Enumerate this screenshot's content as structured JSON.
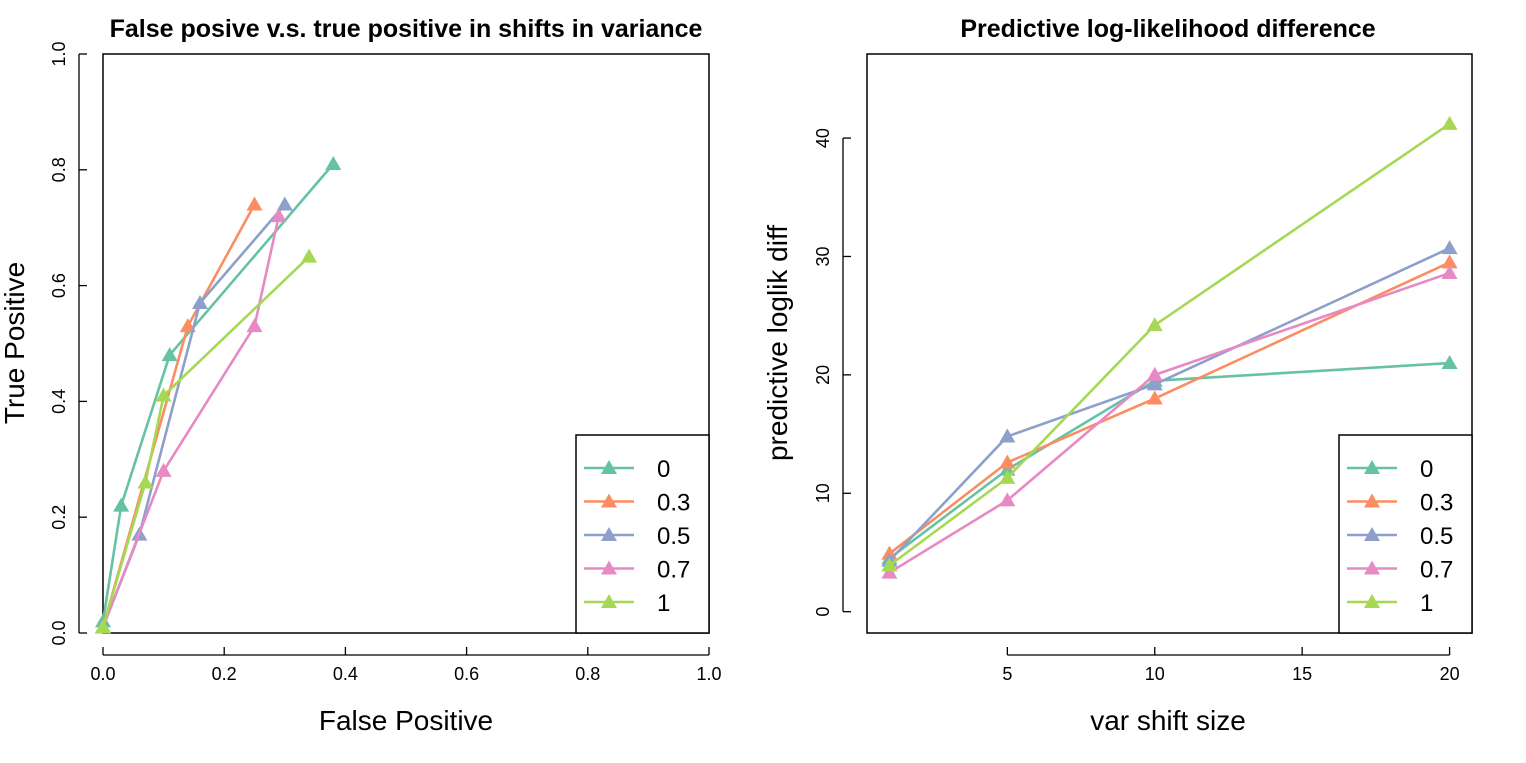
{
  "chart_data": [
    {
      "type": "line",
      "title": "False posive v.s. true positive in shifts in variance",
      "xlabel": "False Positive",
      "ylabel": "True Positive",
      "xlim": [
        0,
        1
      ],
      "ylim": [
        0,
        1
      ],
      "xticks": [
        "0.0",
        "0.2",
        "0.4",
        "0.6",
        "0.8",
        "1.0"
      ],
      "yticks": [
        "0.0",
        "0.2",
        "0.4",
        "0.6",
        "0.8",
        "1.0"
      ],
      "legend_position": "bottom-right",
      "series": [
        {
          "name": "0",
          "color": "#66C2A5",
          "x": [
            0.0,
            0.03,
            0.11,
            0.38
          ],
          "y": [
            0.02,
            0.22,
            0.48,
            0.81
          ]
        },
        {
          "name": "0.3",
          "color": "#FC8D62",
          "x": [
            0.0,
            0.14,
            0.25
          ],
          "y": [
            0.01,
            0.53,
            0.74
          ]
        },
        {
          "name": "0.5",
          "color": "#8DA0CB",
          "x": [
            0.0,
            0.06,
            0.16,
            0.3
          ],
          "y": [
            0.01,
            0.17,
            0.57,
            0.74
          ]
        },
        {
          "name": "0.7",
          "color": "#E78AC3",
          "x": [
            0.0,
            0.1,
            0.25,
            0.29
          ],
          "y": [
            0.01,
            0.28,
            0.53,
            0.72
          ]
        },
        {
          "name": "1",
          "color": "#A6D854",
          "x": [
            0.0,
            0.07,
            0.1,
            0.34
          ],
          "y": [
            0.01,
            0.26,
            0.41,
            0.65
          ]
        }
      ]
    },
    {
      "type": "line",
      "title": "Predictive log-likelihood difference",
      "xlabel": "var shift size",
      "ylabel": "predictive loglik diff",
      "xlim": [
        0.24,
        20.76
      ],
      "ylim": [
        -1.8,
        47.1
      ],
      "xticks": [
        "5",
        "10",
        "15",
        "20"
      ],
      "yticks": [
        "0",
        "10",
        "20",
        "30",
        "40"
      ],
      "legend_position": "bottom-right",
      "series": [
        {
          "name": "0",
          "color": "#66C2A5",
          "x": [
            1,
            5,
            10,
            20
          ],
          "y": [
            4.5,
            12.0,
            19.5,
            21.0
          ]
        },
        {
          "name": "0.3",
          "color": "#FC8D62",
          "x": [
            1,
            5,
            10,
            20
          ],
          "y": [
            4.9,
            12.6,
            18.0,
            29.5
          ]
        },
        {
          "name": "0.5",
          "color": "#8DA0CB",
          "x": [
            1,
            5,
            10,
            20
          ],
          "y": [
            4.3,
            14.8,
            19.2,
            30.7
          ]
        },
        {
          "name": "0.7",
          "color": "#E78AC3",
          "x": [
            1,
            5,
            10,
            20
          ],
          "y": [
            3.3,
            9.4,
            20.0,
            28.6
          ]
        },
        {
          "name": "1",
          "color": "#A6D854",
          "x": [
            1,
            5,
            10,
            20
          ],
          "y": [
            3.9,
            11.3,
            24.2,
            41.2
          ]
        }
      ]
    }
  ]
}
